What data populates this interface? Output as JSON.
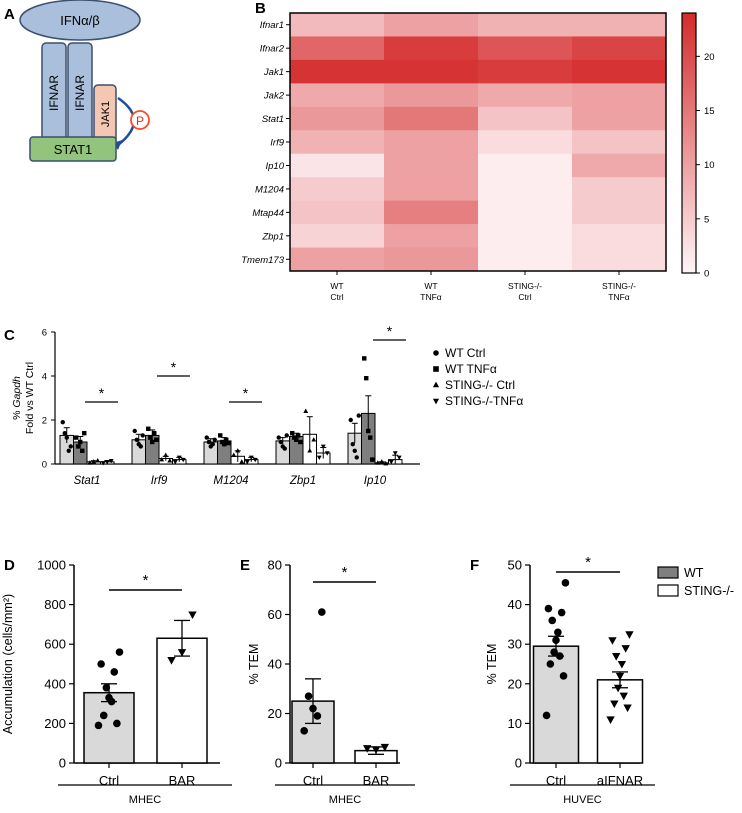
{
  "panels": {
    "A": {
      "letter": "A",
      "ifn": "IFNα/β",
      "receptor_left": "IFNAR",
      "receptor_right": "IFNAR",
      "kinase": "JAK1",
      "phospho": "P",
      "stat": "STAT1",
      "colors": {
        "receptor": "#a9bfdc",
        "kinase": "#f4c7b3",
        "stat": "#93c47d",
        "phospho": "#ff4a2a",
        "outline": "#3b4f6e"
      }
    },
    "B": {
      "letter": "B"
    },
    "C": {
      "letter": "C",
      "ylabel_line1_prefix": "% ",
      "ylabel_line1_italic": "Gapdh",
      "ylabel_line2": "Fold vs WT Ctrl"
    },
    "D": {
      "letter": "D",
      "group_label": "MHEC"
    },
    "E": {
      "letter": "E",
      "group_label": "MHEC"
    },
    "F": {
      "letter": "F",
      "group_label": "HUVEC"
    }
  },
  "colors": {
    "wt": "#7f7f7f",
    "ctrl": "#d9d9d9",
    "sting": "#ffffff",
    "heat_high": "#d42b2b"
  },
  "chart_data": [
    {
      "id": "B",
      "type": "heatmap",
      "rows": [
        "Ifnar1",
        "Ifnar2",
        "Jak1",
        "Jak2",
        "Stat1",
        "Irf9",
        "Ip10",
        "M1204",
        "Mtap44",
        "Zbp1",
        "Tmem173"
      ],
      "columns": [
        "WT\nCtrl",
        "WT\nTNFα",
        "STING-/-\nCtrl",
        "STING-/-\nTNFα"
      ],
      "values": [
        [
          7,
          10,
          8,
          8
        ],
        [
          17,
          22,
          19,
          21
        ],
        [
          23,
          23,
          22,
          23
        ],
        [
          9,
          11,
          9,
          10
        ],
        [
          11,
          15,
          6,
          10
        ],
        [
          8,
          10,
          3,
          6
        ],
        [
          2,
          10,
          1,
          9
        ],
        [
          5,
          10,
          1,
          5
        ],
        [
          6,
          14,
          1,
          5
        ],
        [
          4,
          10,
          1,
          3
        ],
        [
          10,
          11,
          1,
          3
        ]
      ],
      "colorbar": {
        "min": 0,
        "max": 24,
        "ticks": [
          0,
          5,
          10,
          15,
          20
        ]
      }
    },
    {
      "id": "C",
      "type": "bar",
      "categories": [
        "Stat1",
        "Irf9",
        "M1204",
        "Zbp1",
        "Ip10"
      ],
      "series": [
        {
          "name": "WT Ctrl",
          "marker": "circle",
          "values": [
            1.3,
            1.1,
            1.0,
            1.05,
            1.4
          ],
          "errors": [
            0.35,
            0.25,
            0.15,
            0.15,
            0.45
          ]
        },
        {
          "name": "WT TNFα",
          "marker": "square",
          "values": [
            1.0,
            1.3,
            1.05,
            1.25,
            2.3
          ],
          "errors": [
            0.25,
            0.25,
            0.15,
            0.15,
            0.8
          ]
        },
        {
          "name": "STING-/- Ctrl",
          "marker": "triangle-up",
          "values": [
            0.1,
            0.25,
            0.35,
            1.35,
            0.05
          ],
          "errors": [
            0.05,
            0.1,
            0.25,
            0.8,
            0.05
          ]
        },
        {
          "name": "STING-/-TNFα",
          "marker": "triangle-down",
          "values": [
            0.1,
            0.2,
            0.2,
            0.5,
            0.2
          ],
          "errors": [
            0.05,
            0.1,
            0.1,
            0.25,
            0.2
          ]
        }
      ],
      "points": [
        [
          [
            1.9,
            1.4,
            1.2,
            0.6,
            0.8
          ],
          [
            1.2,
            0.8,
            1.0,
            0.6,
            1.4
          ],
          [
            0.05,
            0.1,
            0.15
          ],
          [
            0.05,
            0.1,
            0.15
          ]
        ],
        [
          [
            1.5,
            1.1,
            0.9,
            0.8,
            1.3
          ],
          [
            1.6,
            1.2,
            1.0,
            1.4,
            1.1
          ],
          [
            0.2,
            0.4,
            0.15
          ],
          [
            0.1,
            0.3,
            0.2
          ]
        ],
        [
          [
            1.2,
            1.0,
            0.8,
            0.9,
            1.1
          ],
          [
            1.3,
            1.0,
            0.9,
            1.1,
            0.95
          ],
          [
            0.4,
            0.6,
            0.1
          ],
          [
            0.1,
            0.3,
            0.2
          ]
        ],
        [
          [
            1.2,
            1.0,
            0.8,
            0.7,
            1.3
          ],
          [
            1.4,
            1.2,
            1.1,
            1.3,
            1.0
          ],
          [
            2.4,
            0.6,
            1.1
          ],
          [
            0.3,
            0.8,
            0.5
          ]
        ],
        [
          [
            2.0,
            0.9,
            0.6,
            0.3,
            2.2
          ],
          [
            4.8,
            3.9,
            1.5,
            1.2,
            0.2
          ],
          [
            0.05,
            0.1,
            0.02
          ],
          [
            0.1,
            0.5,
            0.3
          ]
        ]
      ],
      "ylim": [
        0,
        6
      ],
      "yticks": [
        0,
        2,
        4,
        6
      ],
      "significance": "*"
    },
    {
      "id": "D",
      "type": "bar",
      "categories": [
        "Ctrl",
        "BAR"
      ],
      "values": [
        355,
        630
      ],
      "errors": [
        45,
        90
      ],
      "points": [
        [
          560,
          500,
          460,
          380,
          330,
          310,
          240,
          200,
          190
        ],
        [
          750,
          560,
          520
        ]
      ],
      "markers": [
        "circle",
        "triangle-down"
      ],
      "ylabel": "Accumulation (cells/mm²)",
      "ylim": [
        0,
        1000
      ],
      "yticks": [
        0,
        200,
        400,
        600,
        800,
        1000
      ],
      "significance": "*"
    },
    {
      "id": "E",
      "type": "bar",
      "categories": [
        "Ctrl",
        "BAR"
      ],
      "values": [
        25,
        5
      ],
      "errors": [
        9,
        1.5
      ],
      "points": [
        [
          61,
          27,
          22,
          19,
          13
        ],
        [
          6.5,
          5.5,
          6
        ]
      ],
      "markers": [
        "circle",
        "triangle-down"
      ],
      "ylabel": "% TEM",
      "ylim": [
        0,
        80
      ],
      "yticks": [
        0,
        20,
        40,
        60,
        80
      ],
      "significance": "*"
    },
    {
      "id": "F",
      "type": "bar",
      "categories": [
        "Ctrl",
        "aIFNAR"
      ],
      "values": [
        29.5,
        21
      ],
      "errors": [
        2.5,
        2
      ],
      "points": [
        [
          45.5,
          39,
          38,
          36,
          33,
          31,
          28,
          27,
          25,
          22,
          12
        ],
        [
          32.5,
          31,
          29,
          27,
          25,
          22,
          19,
          17,
          15,
          14,
          11
        ]
      ],
      "markers": [
        "circle",
        "triangle-down"
      ],
      "ylabel": "% TEM",
      "ylim": [
        0,
        50
      ],
      "yticks": [
        0,
        10,
        20,
        30,
        40,
        50
      ],
      "legend": [
        {
          "name": "WT",
          "color": "#7f7f7f"
        },
        {
          "name": "STING-/-",
          "color": "#ffffff"
        }
      ],
      "significance": "*"
    }
  ]
}
